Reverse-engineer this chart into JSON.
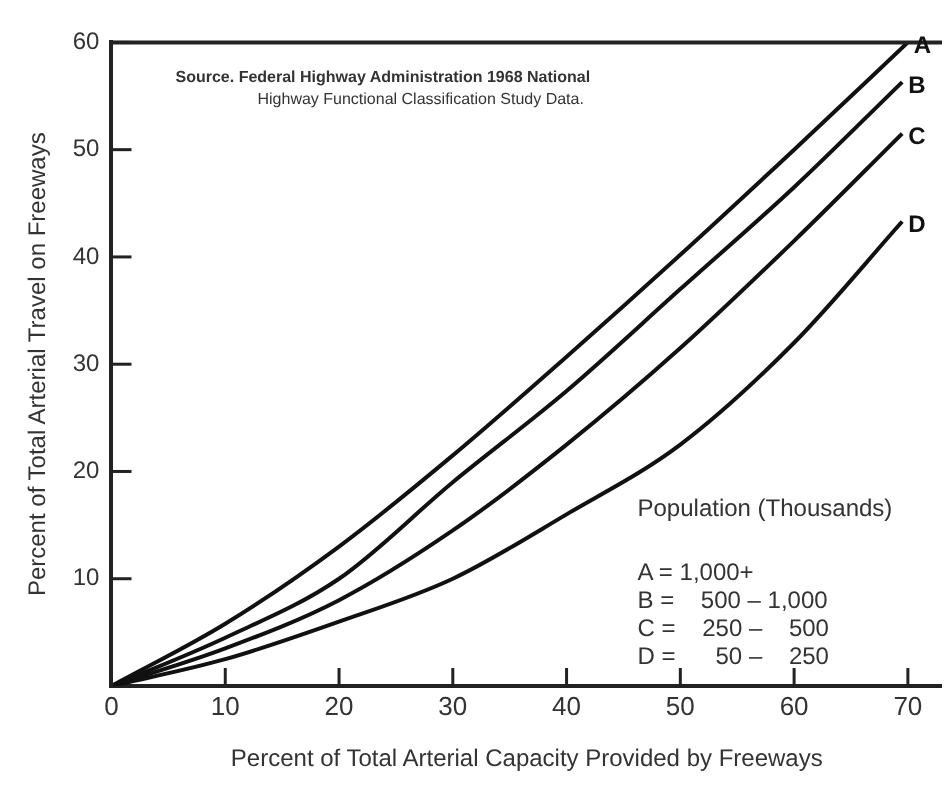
{
  "chart_data": {
    "type": "line",
    "xlabel": "Percent of Total Arterial Capacity Provided by Freeways",
    "ylabel": "Percent of Total Arterial Travel on Freeways",
    "xlim": [
      0,
      73
    ],
    "ylim": [
      0,
      60
    ],
    "xticks": [
      0,
      10,
      20,
      30,
      40,
      50,
      60,
      70
    ],
    "yticks": [
      10,
      20,
      30,
      40,
      50,
      60
    ],
    "grid": false,
    "legend": false,
    "marker": "none",
    "line_style": "solid",
    "series": [
      {
        "name": "A",
        "color": "#111111",
        "x": [
          0,
          10,
          20,
          30,
          40,
          50,
          60,
          70
        ],
        "values": [
          0,
          5.8,
          13,
          21.5,
          30.7,
          40.2,
          50,
          60
        ]
      },
      {
        "name": "B",
        "color": "#111111",
        "x": [
          0,
          10,
          20,
          30,
          40,
          50,
          60,
          69.5
        ],
        "values": [
          0,
          4.5,
          10,
          19,
          27.5,
          37,
          46.5,
          56.3
        ]
      },
      {
        "name": "C",
        "color": "#111111",
        "x": [
          0,
          10,
          20,
          30,
          40,
          50,
          60,
          69.5
        ],
        "values": [
          0,
          3.5,
          8,
          14.5,
          22.5,
          31.5,
          41.5,
          51.5
        ]
      },
      {
        "name": "D",
        "color": "#111111",
        "x": [
          0,
          10,
          20,
          30,
          40,
          50,
          60,
          69.5
        ],
        "values": [
          0,
          2.5,
          6,
          10,
          16,
          22.5,
          32,
          43.3
        ]
      }
    ],
    "annotations": [
      "Source. Federal Highway Administration 1968 National",
      "Highway Functional Classification Study Data.",
      "Population (Thousands)",
      "A = 1,000+",
      "B =    500 – 1,000",
      "C =    250 –    500",
      "D =      50 –    250"
    ]
  }
}
